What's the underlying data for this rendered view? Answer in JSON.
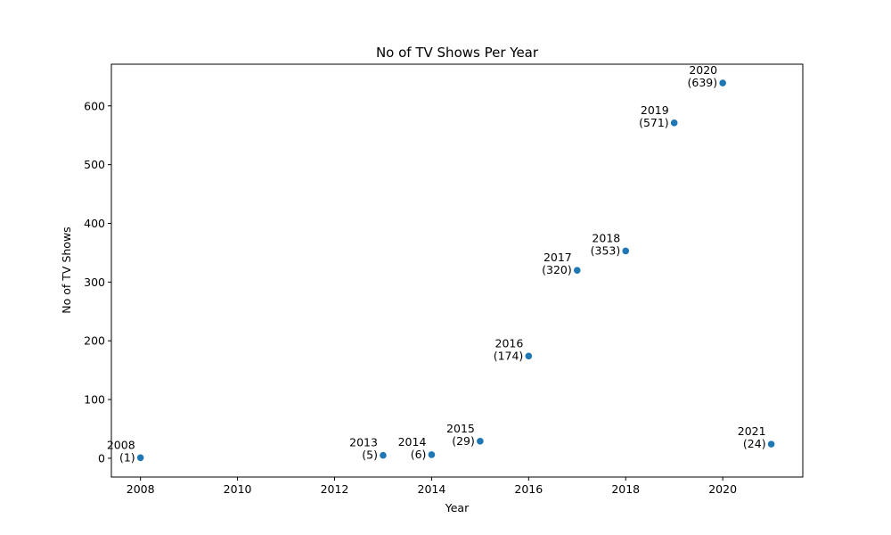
{
  "chart_data": {
    "type": "scatter",
    "title": "No of TV Shows Per Year",
    "xlabel": "Year",
    "ylabel": "No of TV Shows",
    "xlim": [
      2007.4,
      2021.65
    ],
    "ylim": [
      -32,
      671
    ],
    "xticks": [
      2008,
      2010,
      2012,
      2014,
      2016,
      2018,
      2020
    ],
    "yticks": [
      0,
      100,
      200,
      300,
      400,
      500,
      600
    ],
    "grid": false,
    "marker_color": "#1f77b4",
    "points": [
      {
        "x": 2008,
        "y": 1,
        "year_label": "2008",
        "count_label": "(1)"
      },
      {
        "x": 2013,
        "y": 5,
        "year_label": "2013",
        "count_label": "(5)"
      },
      {
        "x": 2014,
        "y": 6,
        "year_label": "2014",
        "count_label": "(6)"
      },
      {
        "x": 2015,
        "y": 29,
        "year_label": "2015",
        "count_label": "(29)"
      },
      {
        "x": 2016,
        "y": 174,
        "year_label": "2016",
        "count_label": "(174)"
      },
      {
        "x": 2017,
        "y": 320,
        "year_label": "2017",
        "count_label": "(320)"
      },
      {
        "x": 2018,
        "y": 353,
        "year_label": "2018",
        "count_label": "(353)"
      },
      {
        "x": 2019,
        "y": 571,
        "year_label": "2019",
        "count_label": "(571)"
      },
      {
        "x": 2020,
        "y": 639,
        "year_label": "2020",
        "count_label": "(639)"
      },
      {
        "x": 2021,
        "y": 24,
        "year_label": "2021",
        "count_label": "(24)"
      }
    ]
  }
}
